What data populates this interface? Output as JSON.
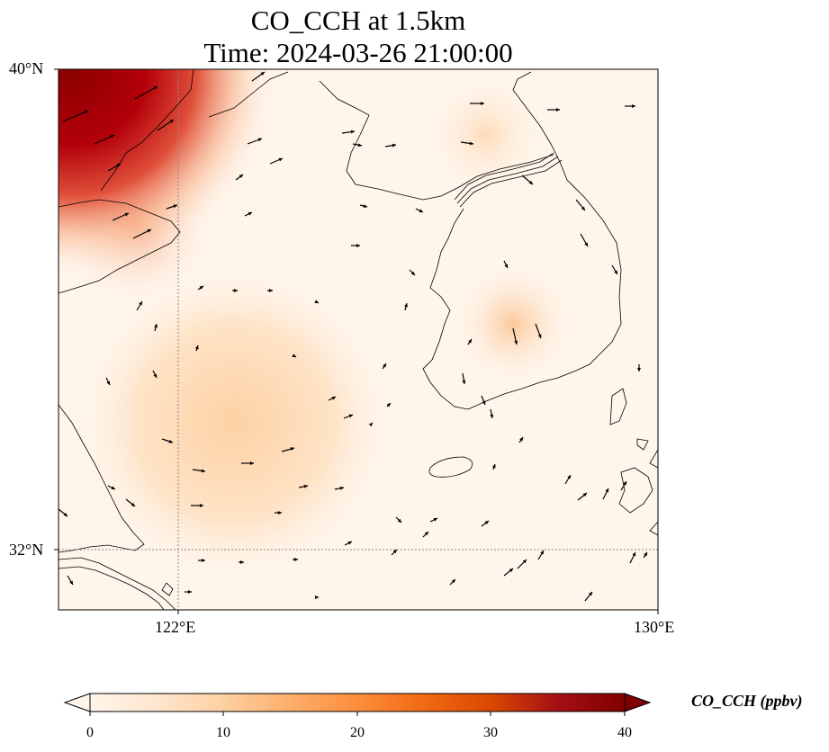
{
  "title": {
    "line1": "CO_CCH at 1.5km",
    "line2": "Time: 2024-03-26 21:00:00"
  },
  "map": {
    "lat_labels": [
      "40°N",
      "32°N"
    ],
    "lon_labels": [
      "122°E",
      "130°E"
    ],
    "gridline_color": "#888888",
    "coastline_color": "#000000"
  },
  "colorbar": {
    "label": "CO_CCH (ppbv)",
    "ticks": [
      "0",
      "10",
      "20",
      "30",
      "40"
    ],
    "colors": [
      "#fff5eb",
      "#fee6ce",
      "#fdd0a2",
      "#fdae6b",
      "#fd8d3c",
      "#f16913",
      "#d94801",
      "#a50f15",
      "#7f0000"
    ]
  }
}
